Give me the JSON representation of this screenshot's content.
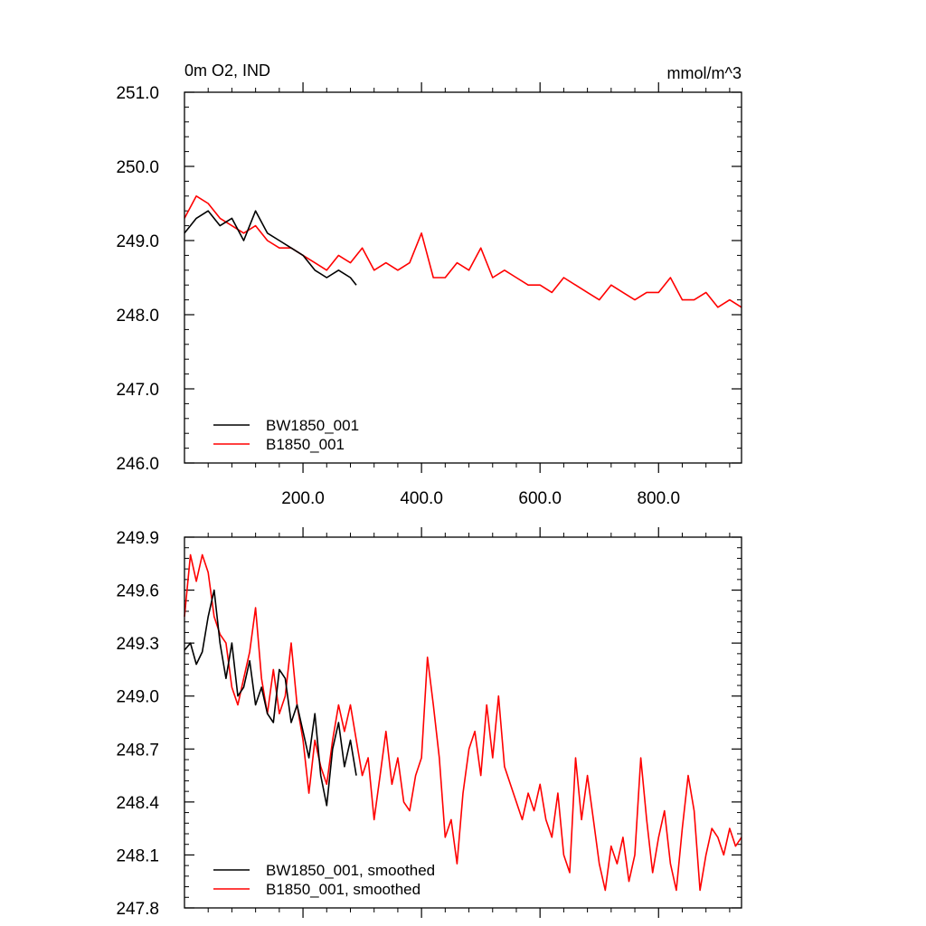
{
  "chart_data": [
    {
      "type": "line",
      "title": "0m O2, IND",
      "units": "mmol/m^3",
      "xlim": [
        0,
        940
      ],
      "ylim": [
        246.0,
        251.0
      ],
      "x_ticks": [
        200,
        400,
        600,
        800
      ],
      "x_tick_labels": [
        "200.0",
        "400.0",
        "600.0",
        "800.0"
      ],
      "y_ticks": [
        246,
        247,
        248,
        249,
        250,
        251
      ],
      "y_tick_labels": [
        "246.0",
        "247.0",
        "248.0",
        "249.0",
        "250.0",
        "251.0"
      ],
      "grid": false,
      "legend": "bottom-left",
      "series": [
        {
          "name": "BW1850_001",
          "color": "#000000",
          "x": [
            0,
            20,
            40,
            60,
            80,
            100,
            120,
            140,
            160,
            180,
            200,
            220,
            240,
            260,
            280,
            290
          ],
          "values": [
            249.1,
            249.3,
            249.4,
            249.2,
            249.3,
            249.0,
            249.4,
            249.1,
            249.0,
            248.9,
            248.8,
            248.6,
            248.5,
            248.6,
            248.5,
            248.4
          ]
        },
        {
          "name": "B1850_001",
          "color": "#ff0000",
          "x": [
            0,
            20,
            40,
            60,
            80,
            100,
            120,
            140,
            160,
            180,
            200,
            220,
            240,
            260,
            280,
            300,
            320,
            340,
            360,
            380,
            400,
            420,
            440,
            460,
            480,
            500,
            520,
            540,
            560,
            580,
            600,
            620,
            640,
            660,
            680,
            700,
            720,
            740,
            760,
            780,
            800,
            820,
            840,
            860,
            880,
            900,
            920,
            940
          ],
          "values": [
            249.3,
            249.6,
            249.5,
            249.3,
            249.2,
            249.1,
            249.2,
            249.0,
            248.9,
            248.9,
            248.8,
            248.7,
            248.6,
            248.8,
            248.7,
            248.9,
            248.6,
            248.7,
            248.6,
            248.7,
            249.1,
            248.5,
            248.5,
            248.7,
            248.6,
            248.9,
            248.5,
            248.6,
            248.5,
            248.4,
            248.4,
            248.3,
            248.5,
            248.4,
            248.3,
            248.2,
            248.4,
            248.3,
            248.2,
            248.3,
            248.3,
            248.5,
            248.2,
            248.2,
            248.3,
            248.1,
            248.2,
            248.1
          ]
        }
      ]
    },
    {
      "type": "line",
      "title": "",
      "xlim": [
        0,
        940
      ],
      "ylim": [
        247.8,
        249.9
      ],
      "y_ticks": [
        247.8,
        248.1,
        248.4,
        248.7,
        249.0,
        249.3,
        249.6,
        249.9
      ],
      "y_tick_labels": [
        "247.8",
        "248.1",
        "248.4",
        "248.7",
        "249.0",
        "249.3",
        "249.6",
        "249.9"
      ],
      "grid": false,
      "legend": "bottom-left",
      "series": [
        {
          "name": "BW1850_001, smoothed",
          "color": "#000000",
          "x": [
            0,
            10,
            20,
            30,
            40,
            50,
            60,
            70,
            80,
            90,
            100,
            110,
            120,
            130,
            140,
            150,
            160,
            170,
            180,
            190,
            200,
            210,
            220,
            230,
            240,
            250,
            260,
            270,
            280,
            290
          ],
          "values": [
            249.26,
            249.3,
            249.18,
            249.25,
            249.45,
            249.6,
            249.3,
            249.1,
            249.3,
            249.0,
            249.05,
            249.2,
            248.95,
            249.05,
            248.9,
            248.85,
            249.15,
            249.1,
            248.85,
            248.95,
            248.8,
            248.65,
            248.9,
            248.55,
            248.38,
            248.7,
            248.85,
            248.6,
            248.75,
            248.55
          ]
        },
        {
          "name": "B1850_001, smoothed",
          "color": "#ff0000",
          "x": [
            0,
            10,
            20,
            30,
            40,
            50,
            60,
            70,
            80,
            90,
            100,
            110,
            120,
            130,
            140,
            150,
            160,
            170,
            180,
            190,
            200,
            210,
            220,
            230,
            240,
            250,
            260,
            270,
            280,
            290,
            300,
            310,
            320,
            330,
            340,
            350,
            360,
            370,
            380,
            390,
            400,
            410,
            420,
            430,
            440,
            450,
            460,
            470,
            480,
            490,
            500,
            510,
            520,
            530,
            540,
            550,
            560,
            570,
            580,
            590,
            600,
            610,
            620,
            630,
            640,
            650,
            660,
            670,
            680,
            690,
            700,
            710,
            720,
            730,
            740,
            750,
            760,
            770,
            780,
            790,
            800,
            810,
            820,
            830,
            840,
            850,
            860,
            870,
            880,
            890,
            900,
            910,
            920,
            930,
            940
          ],
          "values": [
            249.45,
            249.8,
            249.65,
            249.8,
            249.7,
            249.45,
            249.35,
            249.3,
            249.05,
            248.95,
            249.1,
            249.25,
            249.5,
            249.1,
            248.9,
            249.15,
            248.9,
            249.0,
            249.3,
            248.95,
            248.75,
            248.45,
            248.75,
            248.6,
            248.5,
            248.75,
            248.95,
            248.8,
            248.95,
            248.75,
            248.55,
            248.65,
            248.3,
            248.55,
            248.8,
            248.5,
            248.65,
            248.4,
            248.35,
            248.55,
            248.65,
            249.22,
            248.95,
            248.65,
            248.2,
            248.3,
            248.05,
            248.45,
            248.7,
            248.8,
            248.55,
            248.95,
            248.65,
            249.0,
            248.6,
            248.5,
            248.4,
            248.3,
            248.45,
            248.35,
            248.5,
            248.3,
            248.2,
            248.45,
            248.1,
            248.0,
            248.65,
            248.3,
            248.55,
            248.3,
            248.05,
            247.9,
            248.15,
            248.05,
            248.2,
            247.95,
            248.1,
            248.65,
            248.3,
            248.0,
            248.2,
            248.35,
            248.05,
            247.9,
            248.25,
            248.55,
            248.35,
            247.9,
            248.1,
            248.25,
            248.2,
            248.1,
            248.25,
            248.15,
            248.2
          ]
        }
      ]
    }
  ]
}
